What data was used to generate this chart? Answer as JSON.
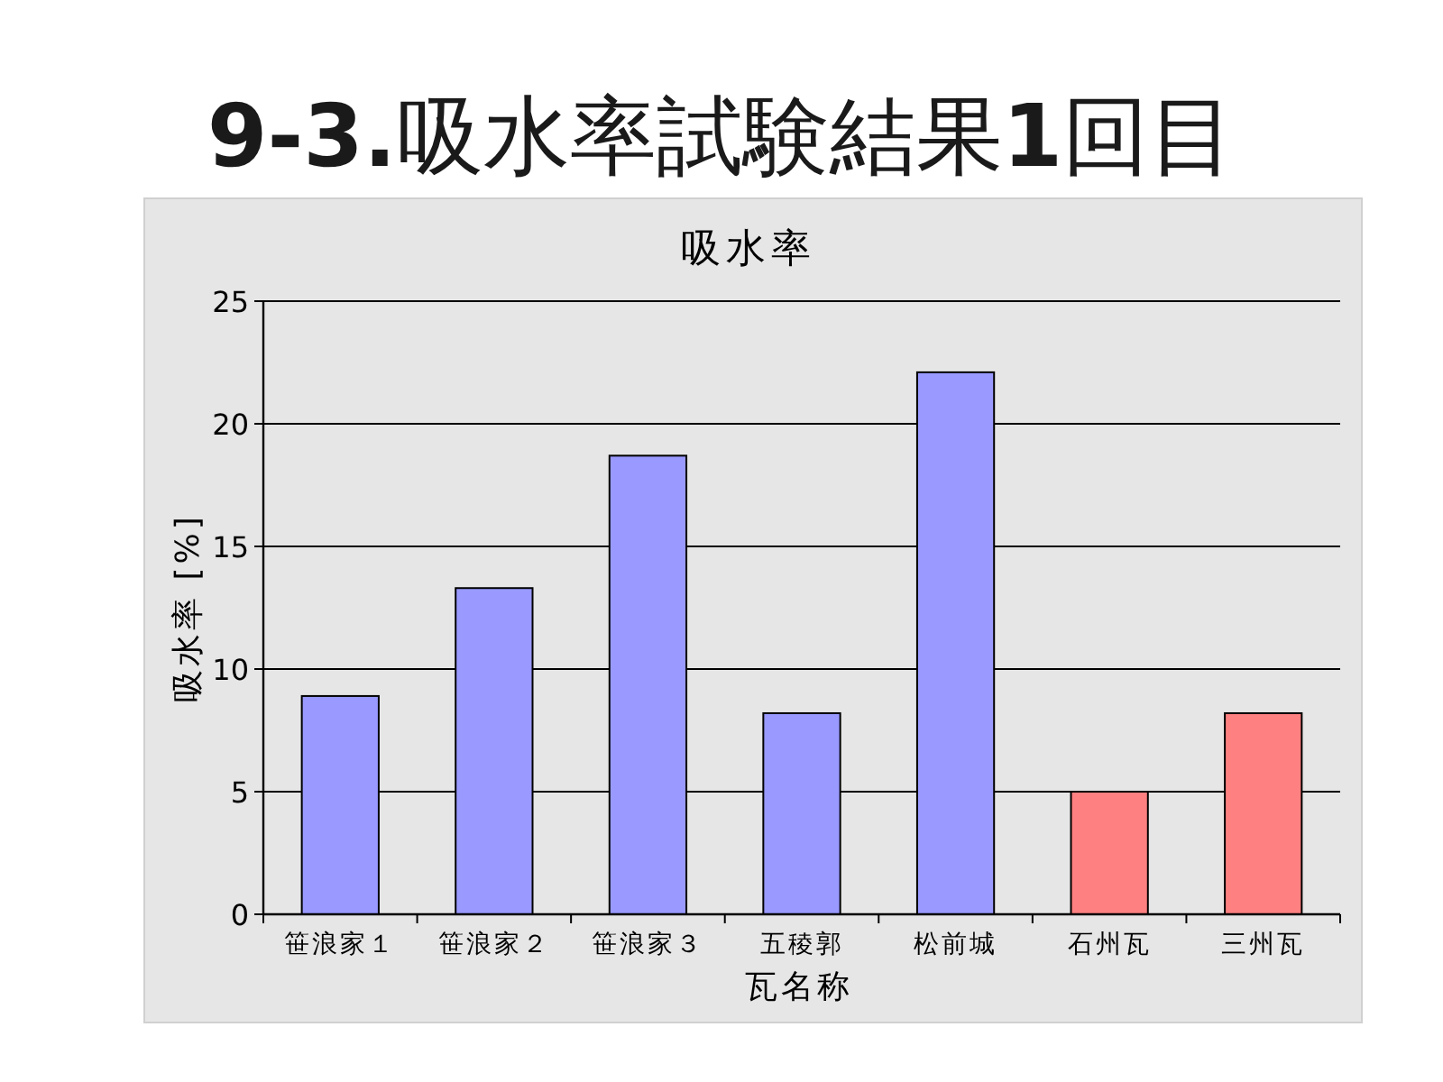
{
  "chart_data": {
    "type": "bar",
    "title": "9-3.吸水率試験結果1回目",
    "subtitle": "吸水率",
    "xlabel": "瓦名称",
    "ylabel": "吸水率 [%]",
    "categories": [
      "笹浪家１",
      "笹浪家２",
      "笹浪家３",
      "五稜郭",
      "松前城",
      "石州瓦",
      "三州瓦"
    ],
    "values": [
      8.9,
      13.3,
      18.7,
      8.2,
      22.1,
      5.0,
      8.2
    ],
    "colors": [
      "#9999ff",
      "#9999ff",
      "#9999ff",
      "#9999ff",
      "#9999ff",
      "#ff8080",
      "#ff8080"
    ],
    "ylim": [
      0,
      25
    ],
    "yticks": [
      0,
      5,
      10,
      15,
      20,
      25
    ],
    "grid": "y"
  }
}
